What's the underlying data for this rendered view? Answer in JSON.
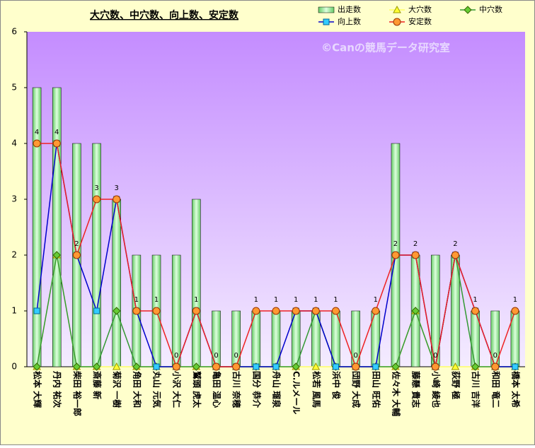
{
  "chart_data": {
    "type": "bar-line",
    "title": "大穴数、中穴数、向上数、安定数",
    "watermark": "©Canの競馬データ研究室",
    "categories": [
      "松本 大輝",
      "丹内 祐次",
      "柴田 裕一郎",
      "斎藤 新",
      "菊沢 一樹",
      "角田 大和",
      "丸山 元気",
      "小沢 大仁",
      "鷲頭 虎太",
      "亀田 温心",
      "古川 奈穂",
      "国分 恭介",
      "舟山 瑠泉",
      "C.ルメール",
      "松若 風馬",
      "浜中 俊",
      "団野 大成",
      "田山 旺佑",
      "佐々木 大輔",
      "藤懸 貴志",
      "小崎 綾也",
      "荻野 極",
      "古川 吉洋",
      "和田 竜二",
      "橋本 太希"
    ],
    "ylim": [
      0,
      6
    ],
    "yticks": [
      0,
      1,
      2,
      3,
      4,
      5,
      6
    ],
    "series": [
      {
        "name": "出走数",
        "kind": "bar",
        "color": "#99ee99",
        "values": [
          5,
          5,
          4,
          4,
          3,
          2,
          2,
          2,
          3,
          1,
          1,
          1,
          1,
          1,
          1,
          1,
          1,
          1,
          4,
          2,
          2,
          2,
          1,
          1,
          1
        ]
      },
      {
        "name": "大穴数",
        "kind": "line",
        "marker": "triangle",
        "color": "#ffff66",
        "values": [
          0,
          2,
          0,
          0,
          0,
          0,
          0,
          0,
          0,
          0,
          0,
          0,
          0,
          0,
          0,
          0,
          0,
          0,
          0,
          1,
          0,
          0,
          0,
          0,
          0
        ]
      },
      {
        "name": "中穴数",
        "kind": "line",
        "marker": "diamond",
        "color": "#339933",
        "values": [
          0,
          2,
          0,
          0,
          1,
          0,
          0,
          0,
          0,
          0,
          0,
          0,
          0,
          0,
          1,
          0,
          0,
          0,
          0,
          1,
          0,
          2,
          0,
          0,
          0
        ]
      },
      {
        "name": "向上数",
        "kind": "line",
        "marker": "square",
        "color": "#0000cc",
        "values": [
          1,
          4,
          2,
          1,
          3,
          1,
          0,
          0,
          1,
          0,
          0,
          0,
          0,
          1,
          1,
          0,
          0,
          0,
          2,
          2,
          0,
          2,
          1,
          0,
          0
        ]
      },
      {
        "name": "安定数",
        "kind": "line",
        "marker": "circle",
        "color": "#ee2222",
        "labels": true,
        "values": [
          4,
          4,
          2,
          3,
          3,
          1,
          1,
          0,
          1,
          0,
          0,
          1,
          1,
          1,
          1,
          1,
          0,
          1,
          2,
          2,
          0,
          2,
          1,
          0,
          1
        ]
      }
    ]
  }
}
